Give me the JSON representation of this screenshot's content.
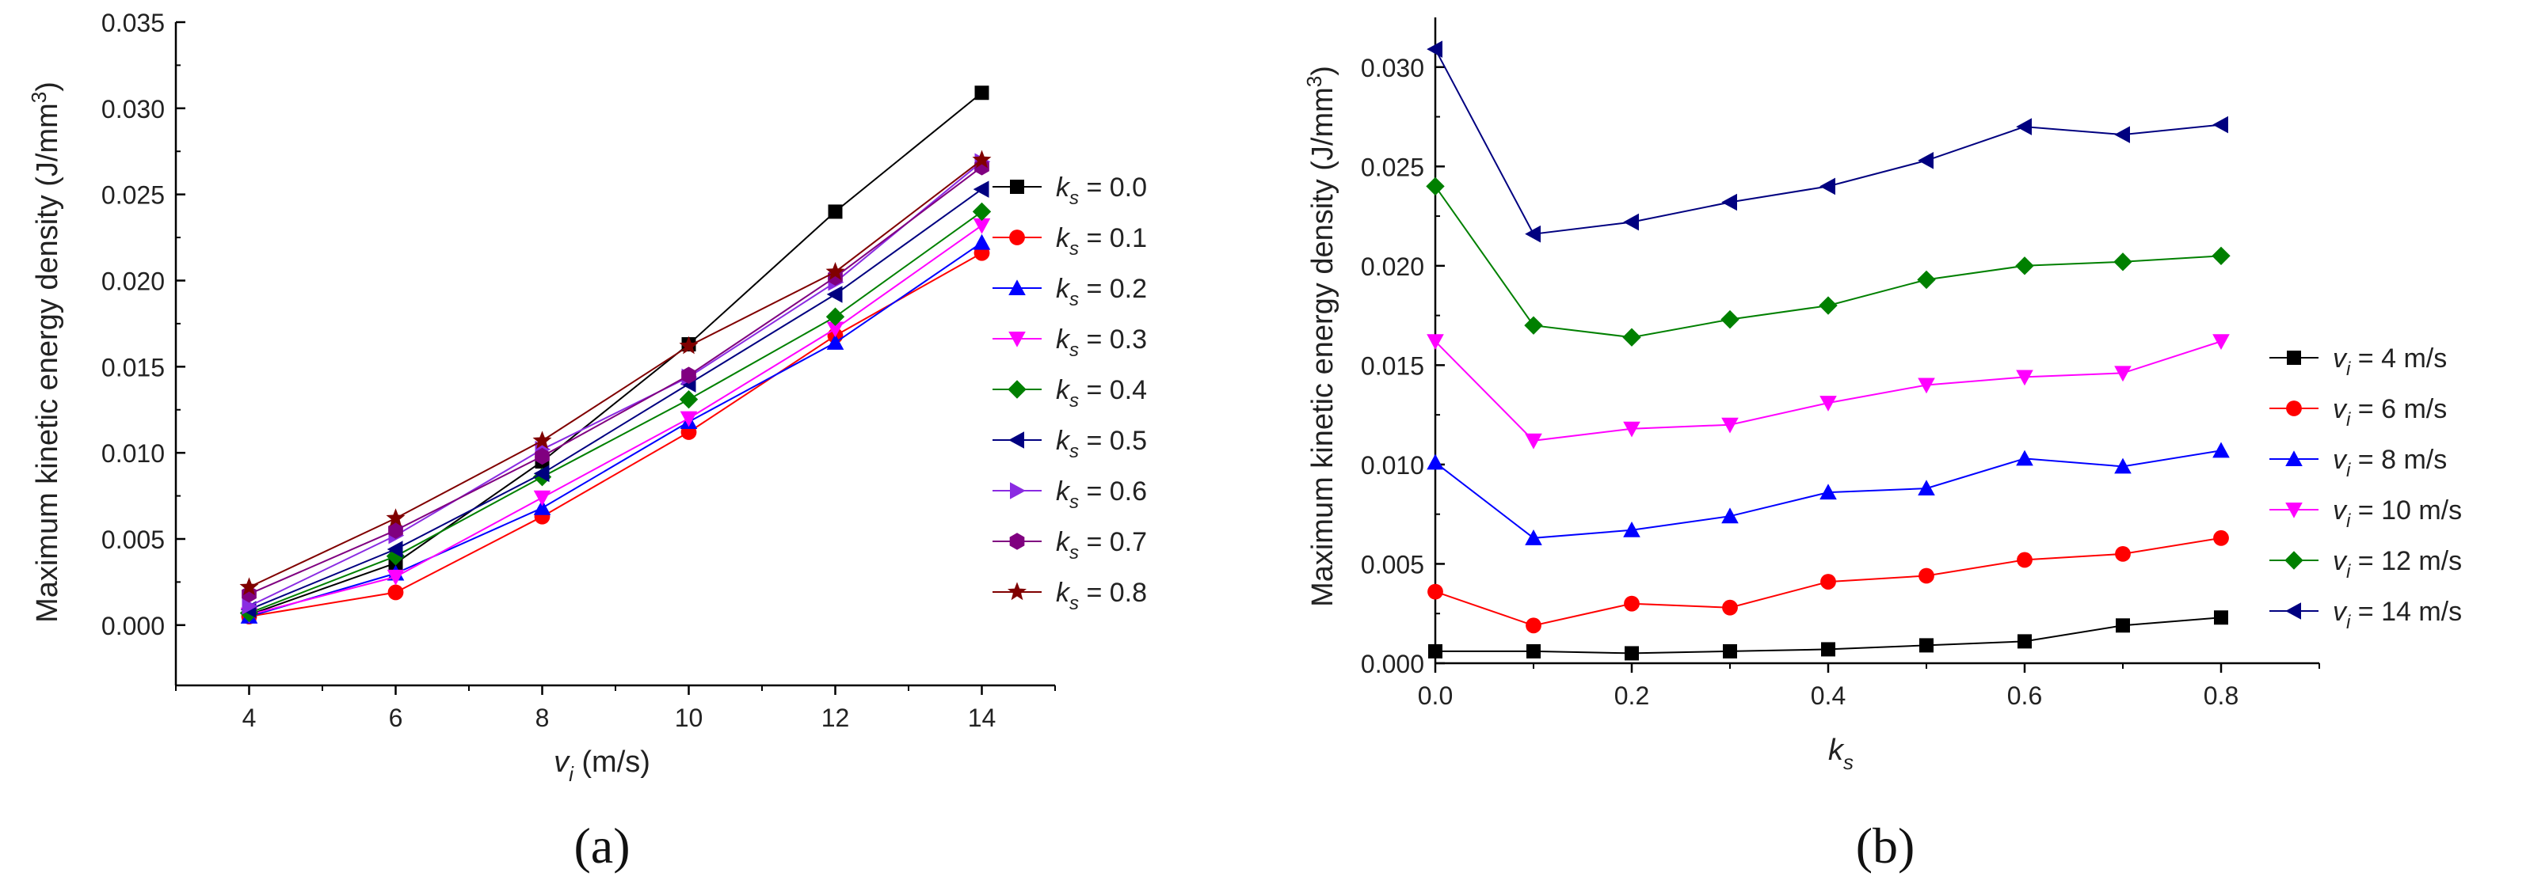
{
  "chart_data": [
    {
      "type": "line",
      "caption": "(a)",
      "title": "",
      "xlabel": "v_i (m/s)",
      "xlabel_var": "v",
      "xlabel_sub": "i",
      "xlabel_unit": "(m/s)",
      "ylabel": "Maximum kinetic energy density  (J/mm³)",
      "ylabel_main": "Maximum kinetic energy density  (J/mm",
      "ylabel_sup": "3",
      "ylabel_end": ")",
      "x": [
        4,
        6,
        8,
        10,
        12,
        14
      ],
      "xlim": [
        3,
        15
      ],
      "ylim": [
        -0.0035,
        0.035
      ],
      "xticks": [
        "4",
        "6",
        "8",
        "10",
        "12",
        "14"
      ],
      "yticks": [
        "0.000",
        "0.005",
        "0.010",
        "0.015",
        "0.020",
        "0.025",
        "0.030",
        "0.035"
      ],
      "legend_position": "right",
      "series": [
        {
          "name": "ks = 0.0",
          "var": "k",
          "sub": "s",
          "label_value": " = 0.0",
          "color": "#000000",
          "marker": "square",
          "values": [
            0.0006,
            0.0036,
            0.0095,
            0.0163,
            0.024,
            0.0309
          ]
        },
        {
          "name": "ks = 0.1",
          "var": "k",
          "sub": "s",
          "label_value": " = 0.1",
          "color": "#ff0000",
          "marker": "circle",
          "values": [
            0.0005,
            0.0019,
            0.0063,
            0.0112,
            0.0168,
            0.0216
          ]
        },
        {
          "name": "ks = 0.2",
          "var": "k",
          "sub": "s",
          "label_value": " = 0.2",
          "color": "#0000ff",
          "marker": "triangle-up",
          "values": [
            0.0005,
            0.003,
            0.0068,
            0.0118,
            0.0164,
            0.0222
          ]
        },
        {
          "name": "ks = 0.3",
          "var": "k",
          "sub": "s",
          "label_value": " = 0.3",
          "color": "#ff00ff",
          "marker": "triangle-down",
          "values": [
            0.0006,
            0.0028,
            0.0074,
            0.012,
            0.0172,
            0.0232
          ]
        },
        {
          "name": "ks = 0.4",
          "var": "k",
          "sub": "s",
          "label_value": " = 0.4",
          "color": "#008000",
          "marker": "diamond",
          "values": [
            0.0007,
            0.004,
            0.0086,
            0.0131,
            0.0179,
            0.024
          ]
        },
        {
          "name": "ks = 0.5",
          "var": "k",
          "sub": "s",
          "label_value": " = 0.5",
          "color": "#000080",
          "marker": "triangle-left",
          "values": [
            0.0009,
            0.0044,
            0.0088,
            0.014,
            0.0192,
            0.0253
          ]
        },
        {
          "name": "ks = 0.6",
          "var": "k",
          "sub": "s",
          "label_value": " = 0.6",
          "color": "#8a2be2",
          "marker": "triangle-right",
          "values": [
            0.0011,
            0.0052,
            0.0102,
            0.0144,
            0.0199,
            0.0269
          ]
        },
        {
          "name": "ks = 0.7",
          "var": "k",
          "sub": "s",
          "label_value": " = 0.7",
          "color": "#800080",
          "marker": "hexagon",
          "values": [
            0.0018,
            0.0055,
            0.0098,
            0.0145,
            0.0202,
            0.0266
          ]
        },
        {
          "name": "ks = 0.8",
          "var": "k",
          "sub": "s",
          "label_value": " = 0.8",
          "color": "#800000",
          "marker": "star",
          "values": [
            0.0022,
            0.0062,
            0.0107,
            0.0162,
            0.0205,
            0.027
          ]
        }
      ]
    },
    {
      "type": "line",
      "caption": "(b)",
      "title": "",
      "xlabel": "ks",
      "xlabel_var": "k",
      "xlabel_sub": "s",
      "xlabel_unit": "",
      "ylabel": "Maximum kinetic energy density  (J/mm³)",
      "ylabel_main": "Maximum kinetic energy density  (J/mm",
      "ylabel_sup": "3",
      "ylabel_end": ")",
      "x": [
        0.0,
        0.1,
        0.2,
        0.3,
        0.4,
        0.5,
        0.6,
        0.7,
        0.8
      ],
      "xlim": [
        0.0,
        0.9
      ],
      "ylim": [
        0.0,
        0.0325
      ],
      "xticks": [
        "0.0",
        "0.2",
        "0.4",
        "0.6",
        "0.8"
      ],
      "yticks": [
        "0.000",
        "0.005",
        "0.010",
        "0.015",
        "0.020",
        "0.025",
        "0.030"
      ],
      "legend_position": "right",
      "series": [
        {
          "name": "vi = 4 m/s",
          "var": "v",
          "sub": "i",
          "label_value": " = 4 m/s",
          "color": "#000000",
          "marker": "square",
          "values": [
            0.0006,
            0.0006,
            0.0005,
            0.0006,
            0.0007,
            0.0009,
            0.0011,
            0.0019,
            0.0023
          ]
        },
        {
          "name": "vi = 6 m/s",
          "var": "v",
          "sub": "i",
          "label_value": " = 6 m/s",
          "color": "#ff0000",
          "marker": "circle",
          "values": [
            0.0036,
            0.0019,
            0.003,
            0.0028,
            0.0041,
            0.0044,
            0.0052,
            0.0055,
            0.0063
          ]
        },
        {
          "name": "vi = 8 m/s",
          "var": "v",
          "sub": "i",
          "label_value": " = 8 m/s",
          "color": "#0000ff",
          "marker": "triangle-up",
          "values": [
            0.0101,
            0.0063,
            0.0067,
            0.0074,
            0.0086,
            0.0088,
            0.0103,
            0.0099,
            0.0107
          ]
        },
        {
          "name": "vi = 10 m/s",
          "var": "v",
          "sub": "i",
          "label_value": " = 10 m/s",
          "color": "#ff00ff",
          "marker": "triangle-down",
          "values": [
            0.0162,
            0.0112,
            0.0118,
            0.012,
            0.0131,
            0.014,
            0.0144,
            0.0146,
            0.0162
          ]
        },
        {
          "name": "vi = 12 m/s",
          "var": "v",
          "sub": "i",
          "label_value": " = 12 m/s",
          "color": "#008000",
          "marker": "diamond",
          "values": [
            0.024,
            0.017,
            0.0164,
            0.0173,
            0.018,
            0.0193,
            0.02,
            0.0202,
            0.0205
          ]
        },
        {
          "name": "vi = 14 m/s",
          "var": "v",
          "sub": "i",
          "label_value": " = 14 m/s",
          "color": "#000080",
          "marker": "triangle-left",
          "values": [
            0.0309,
            0.0216,
            0.0222,
            0.0232,
            0.024,
            0.0253,
            0.027,
            0.0266,
            0.0271
          ]
        }
      ]
    }
  ]
}
